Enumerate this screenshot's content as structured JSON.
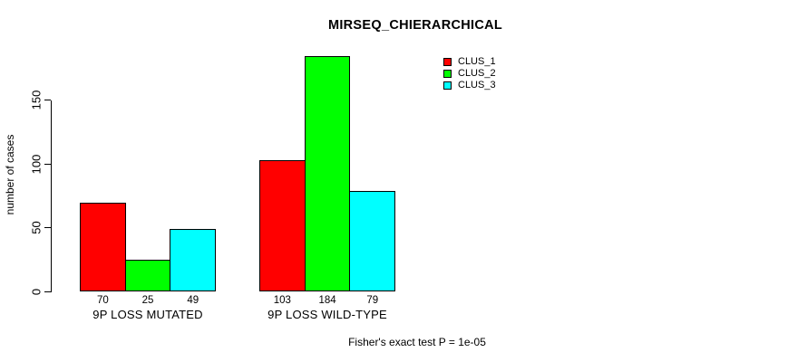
{
  "chart_data": {
    "type": "bar",
    "title": "MIRSEQ_CHIERARCHICAL",
    "ylabel": "number of cases",
    "xlabel": "",
    "categories": [
      "9P LOSS MUTATED",
      "9P LOSS WILD-TYPE"
    ],
    "series": [
      {
        "name": "CLUS_1",
        "color": "#ff0000",
        "values": [
          70,
          103
        ]
      },
      {
        "name": "CLUS_2",
        "color": "#00ff00",
        "values": [
          25,
          184
        ]
      },
      {
        "name": "CLUS_3",
        "color": "#00ffff",
        "values": [
          49,
          79
        ]
      }
    ],
    "bar_value_labels": [
      [
        70,
        25,
        49
      ],
      [
        103,
        184,
        79
      ]
    ],
    "yticks": [
      0,
      50,
      100,
      150
    ],
    "ylim": [
      0,
      190
    ],
    "grid": false,
    "legend_position": "top-right",
    "bar_border_color": "#000000",
    "axis_color": "#000000",
    "annotation": "Fisher's exact test P = 1e-05"
  }
}
